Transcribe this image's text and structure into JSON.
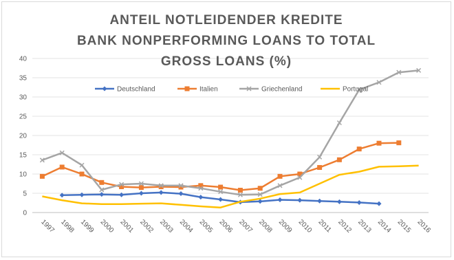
{
  "chart_data": {
    "type": "line",
    "title_lines": [
      "ANTEIL NOTLEIDENDER KREDITE",
      "BANK NONPERFORMING LOANS TO TOTAL",
      "GROSS LOANS (%)"
    ],
    "xlabel": "",
    "ylabel": "",
    "x": [
      "1997",
      "1998",
      "1999",
      "2000",
      "2001",
      "2002",
      "2003",
      "2004",
      "2005",
      "2006",
      "2007",
      "2008",
      "2009",
      "2010",
      "2011",
      "2012",
      "2013",
      "2014",
      "2015",
      "2016"
    ],
    "ylim": [
      0,
      40
    ],
    "yticks": [
      0,
      5,
      10,
      15,
      20,
      25,
      30,
      35,
      40
    ],
    "grid": "horizontal",
    "legend_position": "top",
    "series": [
      {
        "name": "Deutschland",
        "color": "#4472c4",
        "marker": "diamond",
        "values": [
          null,
          4.5,
          4.6,
          4.7,
          4.6,
          5.0,
          5.2,
          4.9,
          4.0,
          3.4,
          2.7,
          2.9,
          3.3,
          3.2,
          3.0,
          2.8,
          2.6,
          2.3,
          null,
          null
        ]
      },
      {
        "name": "Italien",
        "color": "#ed7d31",
        "marker": "square",
        "values": [
          9.4,
          11.8,
          10.0,
          7.8,
          6.7,
          6.5,
          6.7,
          6.6,
          7.0,
          6.6,
          5.8,
          6.3,
          9.4,
          10.0,
          11.7,
          13.7,
          16.5,
          18.0,
          18.1,
          null
        ]
      },
      {
        "name": "Griechenland",
        "color": "#a5a5a5",
        "marker": "x",
        "values": [
          13.6,
          15.5,
          12.3,
          5.9,
          7.3,
          7.5,
          7.0,
          7.0,
          6.3,
          5.4,
          4.6,
          4.7,
          7.0,
          9.1,
          14.4,
          23.3,
          31.9,
          33.8,
          36.4,
          36.9
        ]
      },
      {
        "name": "Portugal",
        "color": "#ffc000",
        "marker": "none",
        "values": [
          4.2,
          3.2,
          2.4,
          2.2,
          2.2,
          2.3,
          2.4,
          2.0,
          1.6,
          1.3,
          2.8,
          3.6,
          4.8,
          5.2,
          7.5,
          9.8,
          10.6,
          11.9,
          12.0,
          12.2
        ]
      }
    ]
  }
}
